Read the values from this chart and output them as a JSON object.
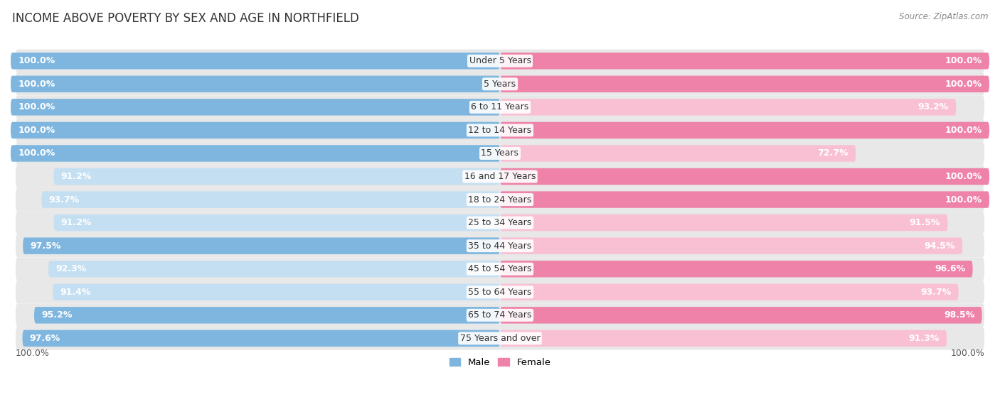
{
  "title": "INCOME ABOVE POVERTY BY SEX AND AGE IN NORTHFIELD",
  "source": "Source: ZipAtlas.com",
  "categories": [
    "Under 5 Years",
    "5 Years",
    "6 to 11 Years",
    "12 to 14 Years",
    "15 Years",
    "16 and 17 Years",
    "18 to 24 Years",
    "25 to 34 Years",
    "35 to 44 Years",
    "45 to 54 Years",
    "55 to 64 Years",
    "65 to 74 Years",
    "75 Years and over"
  ],
  "male_values": [
    100.0,
    100.0,
    100.0,
    100.0,
    100.0,
    91.2,
    93.7,
    91.2,
    97.5,
    92.3,
    91.4,
    95.2,
    97.6
  ],
  "female_values": [
    100.0,
    100.0,
    93.2,
    100.0,
    72.7,
    100.0,
    100.0,
    91.5,
    94.5,
    96.6,
    93.7,
    98.5,
    91.3
  ],
  "male_color": "#7EB6DF",
  "female_color": "#EE82A8",
  "male_color_light": "#C5DFF2",
  "female_color_light": "#F9C0D4",
  "bg_color": "#ffffff",
  "row_bg_color": "#E8E8E8",
  "bar_height": 0.72,
  "legend_male": "Male",
  "legend_female": "Female",
  "title_fontsize": 12,
  "label_fontsize": 9,
  "category_fontsize": 9,
  "source_fontsize": 8.5,
  "x_axis_label_left": "100.0%",
  "x_axis_label_right": "100.0%"
}
